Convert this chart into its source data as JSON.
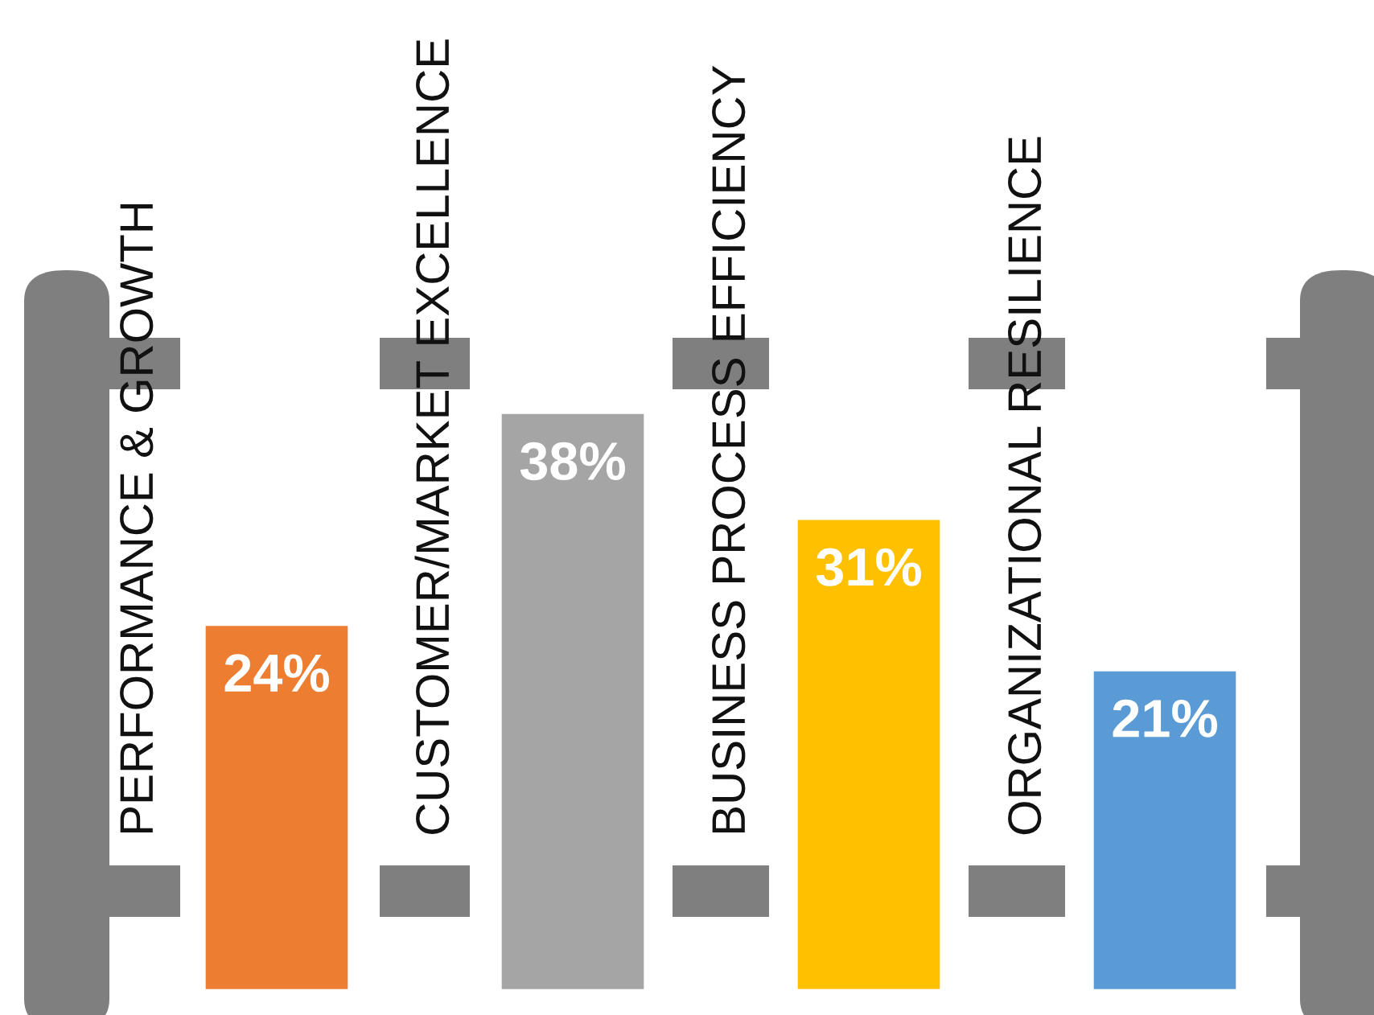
{
  "chart_data": {
    "type": "bar",
    "categories": [
      "PERFORMANCE & GROWTH",
      "CUSTOMER/MARKET EXCELLENCE",
      "BUSINESS PROCESS EFFICIENCY",
      "ORGANIZATIONAL RESILIENCE"
    ],
    "values": [
      24,
      38,
      31,
      21
    ],
    "colors": [
      "#ed7d31",
      "#a5a5a5",
      "#ffc000",
      "#5b9bd5"
    ],
    "value_labels": [
      "24%",
      "38%",
      "31%",
      "21%"
    ],
    "data_labels": false
  }
}
